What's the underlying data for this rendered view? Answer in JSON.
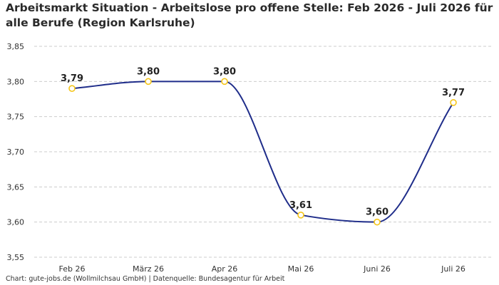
{
  "title": "Arbeitsmarkt Situation - Arbeitslose pro offene Stelle: Feb 2026 - Juli 2026 für alle Berufe (Region Karlsruhe)",
  "source": "Chart: gute-jobs.de (Wollmilchsau GmbH) | Datenquelle: Bundesagentur für Arbeit",
  "colors": {
    "line": "#1f2d8a",
    "marker_stroke": "#f5c518",
    "marker_fill": "#ffffff",
    "grid": "#cccccc"
  },
  "chart_data": {
    "type": "line",
    "title": "Arbeitsmarkt Situation - Arbeitslose pro offene Stelle: Feb 2026 - Juli 2026 für alle Berufe (Region Karlsruhe)",
    "xlabel": "",
    "ylabel": "",
    "categories": [
      "Feb 26",
      "März 26",
      "Apr 26",
      "Mai 26",
      "Juni 26",
      "Juli 26"
    ],
    "series": [
      {
        "values": [
          3.79,
          3.8,
          3.8,
          3.61,
          3.6,
          3.77
        ],
        "labels": [
          "3,79",
          "3,80",
          "3,80",
          "3,61",
          "3,60",
          "3,77"
        ]
      }
    ],
    "ylim": [
      3.55,
      3.85
    ],
    "yticks": [
      3.55,
      3.6,
      3.65,
      3.7,
      3.75,
      3.8,
      3.85
    ],
    "ytick_labels": [
      "3,55",
      "3,60",
      "3,65",
      "3,70",
      "3,75",
      "3,80",
      "3,85"
    ],
    "grid": "horizontal dashed",
    "legend": "none",
    "curve": "smooth"
  }
}
